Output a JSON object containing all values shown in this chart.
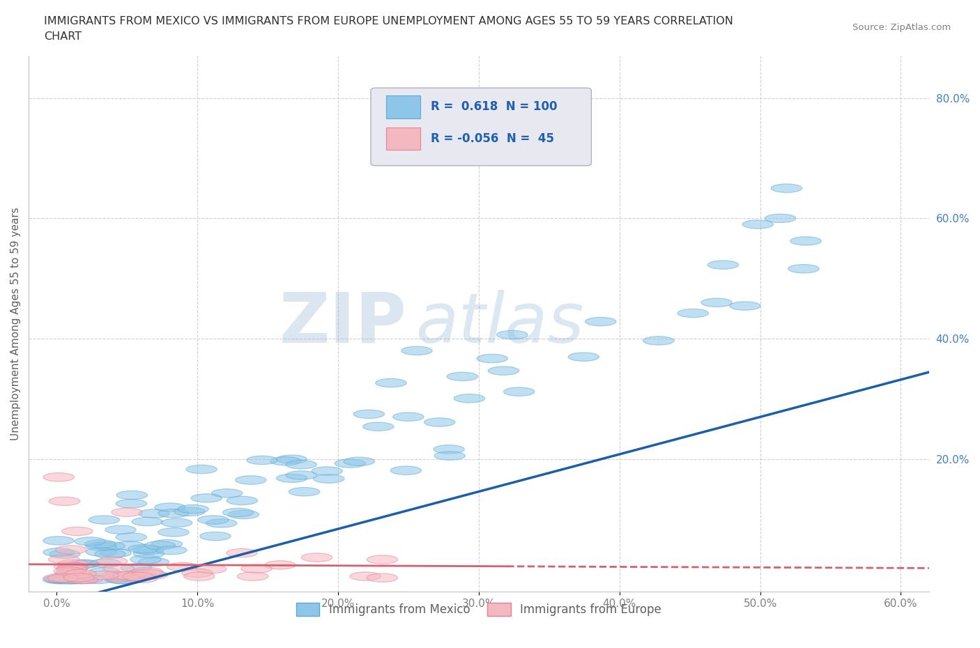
{
  "title_line1": "IMMIGRANTS FROM MEXICO VS IMMIGRANTS FROM EUROPE UNEMPLOYMENT AMONG AGES 55 TO 59 YEARS CORRELATION",
  "title_line2": "CHART",
  "source_text": "Source: ZipAtlas.com",
  "ylabel": "Unemployment Among Ages 55 to 59 years",
  "xlim": [
    -0.02,
    0.62
  ],
  "ylim": [
    -0.02,
    0.87
  ],
  "xticks": [
    0.0,
    0.1,
    0.2,
    0.3,
    0.4,
    0.5,
    0.6
  ],
  "xticklabels": [
    "0.0%",
    "10.0%",
    "20.0%",
    "30.0%",
    "40.0%",
    "50.0%",
    "60.0%"
  ],
  "yticks_right": [
    0.2,
    0.4,
    0.6,
    0.8
  ],
  "yticklabels_right": [
    "20.0%",
    "40.0%",
    "60.0%",
    "80.0%"
  ],
  "mexico_color": "#8dc6e8",
  "mexico_edge_color": "#5aaad4",
  "europe_color": "#f4b8c0",
  "europe_edge_color": "#e88090",
  "mexico_R": 0.618,
  "mexico_N": 100,
  "europe_R": -0.056,
  "europe_N": 45,
  "trendline_mexico_color": "#1a5fa8",
  "trendline_europe_color": "#d46070",
  "watermark_zip": "ZIP",
  "watermark_atlas": "atlas",
  "legend_color": "#2060b0",
  "background_color": "#ffffff",
  "grid_color": "#d0d0d0",
  "title_color": "#303030",
  "axis_label_color": "#606060",
  "tick_right_color": "#4080c0",
  "tick_bottom_color": "#808080",
  "source_color": "#808080",
  "legend_box_color": "#e8e8f0",
  "legend_box_edge": "#b0b0c0"
}
